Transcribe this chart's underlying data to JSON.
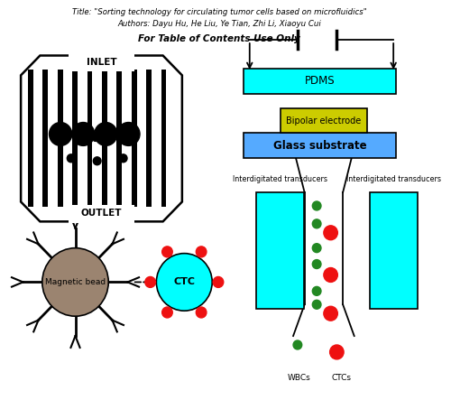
{
  "title_line1": "Title: \"Sorting technology for circulating tumor cells based on microfluidics\"",
  "title_line2": "Authors: Dayu Hu, He Liu, Ye Tian, Zhi Li, Xiaoyu Cui",
  "subtitle": "For Table of Contents Use Only",
  "pdms_color": "#00FFFF",
  "bipolar_color": "#CCCC00",
  "glass_color": "#55AAFF",
  "ctc_color": "#00FFFF",
  "magnetic_color": "#9B8470",
  "red_dot_color": "#EE1111",
  "green_dot_color": "#228822",
  "pdms_label": "PDMS",
  "bipolar_label": "Bipolar electrode",
  "glass_label": "Glass substrate",
  "ctc_label": "CTC",
  "magnetic_label": "Magnetic bead",
  "interdig_label": "Interdigitated transducers",
  "inlet_label": "INLET",
  "outlet_label": "OUTLET",
  "wbc_label": "WBCs",
  "ctc_label2": "CTCs"
}
